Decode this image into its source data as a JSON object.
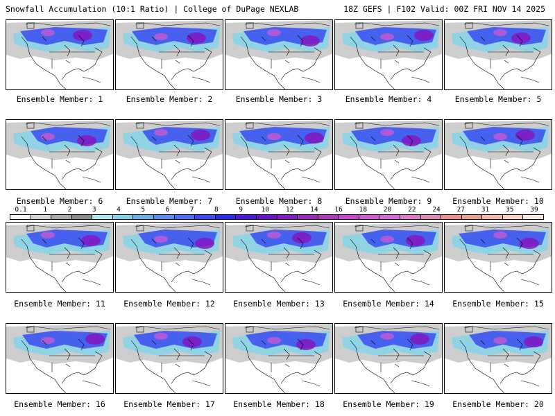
{
  "header": {
    "title_left": "Snowfall Accumulation (10:1 Ratio) | College of DuPage NEXLAB",
    "title_right": "18Z GEFS | F102 Valid: 00Z FRI NOV 14 2025"
  },
  "panel_label_prefix": "Ensemble Member: ",
  "members": [
    "1",
    "2",
    "3",
    "4",
    "5",
    "6",
    "7",
    "8",
    "9",
    "10",
    "11",
    "12",
    "13",
    "14",
    "15",
    "16",
    "17",
    "18",
    "19",
    "20"
  ],
  "colorbar": {
    "ticks": [
      "0.1",
      "1",
      "2",
      "3",
      "4",
      "5",
      "6",
      "7",
      "8",
      "9",
      "10",
      "12",
      "14",
      "16",
      "18",
      "20",
      "22",
      "24",
      "27",
      "31",
      "35",
      "39"
    ],
    "colors": [
      "#f4f4f4",
      "#d4d4d4",
      "#a8a8a8",
      "#8a8a8a",
      "#a9e6ee",
      "#7fd4ea",
      "#6aaee8",
      "#5a8ee8",
      "#4a6ef0",
      "#3a4cf0",
      "#2a2ae8",
      "#4a1ad8",
      "#6a12c8",
      "#8418c0",
      "#9a28b8",
      "#b038c0",
      "#c448c8",
      "#d058d0",
      "#d868d8",
      "#e078c8",
      "#e088b0",
      "#ec8c8c",
      "#e8a090",
      "#f0b8a8",
      "#f6d0c0",
      "#fae8e0"
    ]
  },
  "colors": {
    "gray": "#c4c4c4",
    "cyan": "#7fd4ea",
    "blue": "#3a4cf0",
    "purple": "#8418c0",
    "pink": "#d058d0"
  }
}
